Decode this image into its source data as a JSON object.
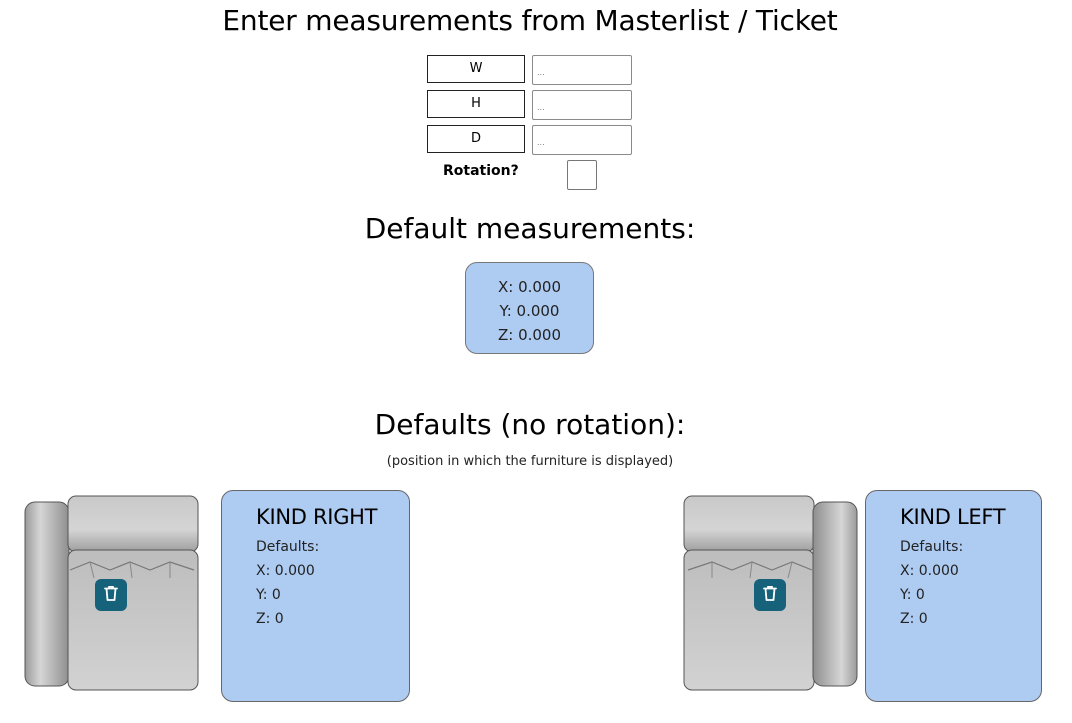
{
  "header": {
    "title": "Enter measurements from Masterlist / Ticket"
  },
  "dimensions": [
    {
      "label": "W",
      "placeholder": "..."
    },
    {
      "label": "H",
      "placeholder": "..."
    },
    {
      "label": "D",
      "placeholder": "..."
    }
  ],
  "rotation": {
    "label": "Rotation?",
    "checked": false
  },
  "default_measurements": {
    "title": "Default measurements:",
    "x": "X: 0.000",
    "y": "Y: 0.000",
    "z": "Z: 0.000"
  },
  "defaults_section": {
    "title": "Defaults (no rotation):",
    "subtitle": "(position in which the furniture is displayed)"
  },
  "kinds": [
    {
      "title": "KIND RIGHT",
      "defaults_label": "Defaults:",
      "x": "X: 0.000",
      "y": "Y: 0",
      "z": "Z: 0",
      "icon": "trash-icon"
    },
    {
      "title": "KIND LEFT",
      "defaults_label": "Defaults:",
      "x": "X: 0.000",
      "y": "Y: 0",
      "z": "Z: 0",
      "icon": "trash-icon"
    }
  ],
  "colors": {
    "card_bg": "#aecbf2",
    "button_bg": "#15627a"
  }
}
